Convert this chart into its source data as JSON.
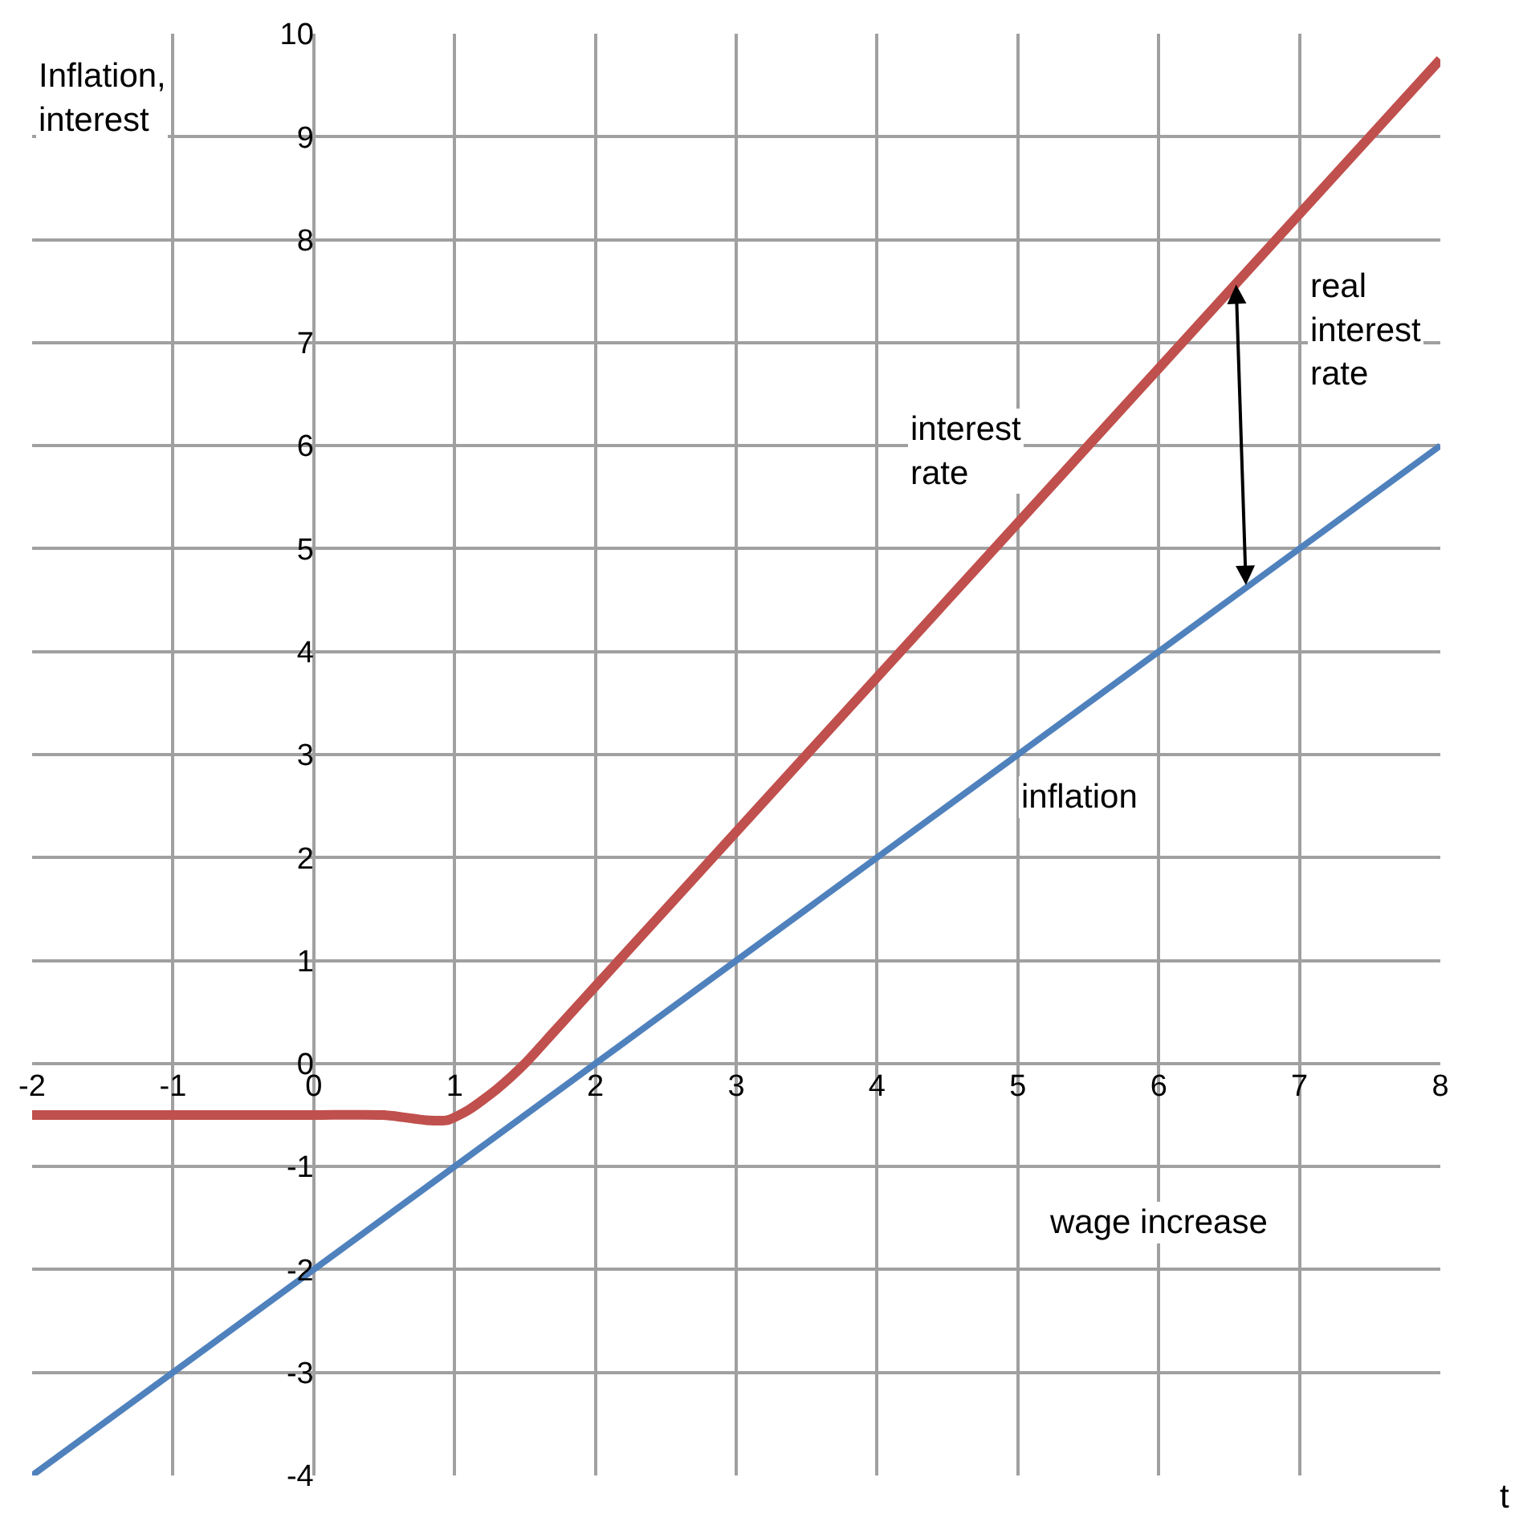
{
  "chart_data": {
    "type": "line",
    "xlabel": "wage increase",
    "ylabel": "Inflation, interest",
    "series": [
      {
        "name": "interest rate",
        "color": "#c0504d",
        "x": [
          -2,
          -1,
          0,
          0.5,
          0.8,
          0.95,
          1.1,
          1.3,
          1.5,
          1.7,
          2,
          3,
          4,
          5,
          6,
          7,
          8
        ],
        "values": [
          -0.5,
          -0.5,
          -0.5,
          -0.5,
          -0.55,
          -0.55,
          -0.45,
          -0.25,
          0.0,
          0.3,
          0.75,
          2.25,
          3.75,
          5.25,
          6.75,
          8.25,
          9.75
        ]
      },
      {
        "name": "inflation",
        "color": "#4f81bd",
        "x": [
          -2,
          8
        ],
        "values": [
          -4,
          6
        ]
      }
    ],
    "annotations": [
      "real interest rate",
      "t"
    ],
    "xlim": [
      -2,
      8
    ],
    "ylim": [
      -4,
      10
    ],
    "xticks": [
      -2,
      -1,
      0,
      1,
      2,
      3,
      4,
      5,
      6,
      7,
      8
    ],
    "yticks": [
      -4,
      -3,
      -2,
      -1,
      0,
      1,
      2,
      3,
      4,
      5,
      6,
      7,
      8,
      9,
      10
    ],
    "grid": true,
    "legend": false,
    "marker": "none",
    "line_style": "solid"
  }
}
